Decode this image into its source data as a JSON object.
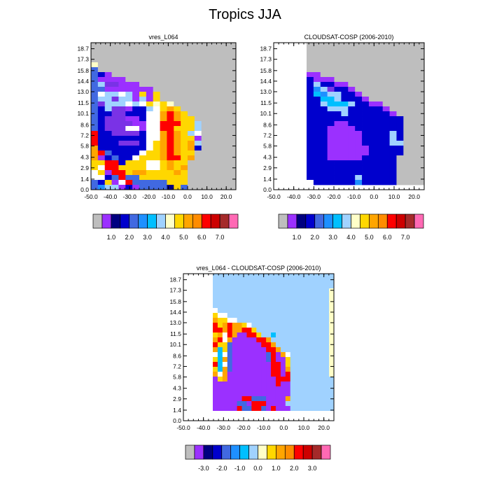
{
  "figure": {
    "title": "Tropics JJA"
  },
  "chart_data": [
    {
      "type": "heatmap",
      "title": "vres_L064",
      "xlabel": "",
      "ylabel": "",
      "x_ticks": [
        "-50.0",
        "-40.0",
        "-30.0",
        "-20.0",
        "-10.0",
        "0.0",
        "10.0",
        "20.0"
      ],
      "y_ticks": [
        "0.0",
        "1.4",
        "2.9",
        "4.3",
        "5.8",
        "7.2",
        "8.6",
        "10.1",
        "11.5",
        "13.0",
        "14.4",
        "15.8",
        "17.3",
        "18.7"
      ],
      "xlim": [
        -50,
        25
      ],
      "ylim": [
        0,
        19.5
      ],
      "colorbar_labels": [
        "1.0",
        "2.0",
        "3.0",
        "4.0",
        "5.0",
        "6.0",
        "7.0"
      ],
      "rows_top_to_bottom": [
        "GGGGGGGGGGGGGGGGGGGGG",
        "GGGGGGGGGGGGGGGGGGGGG",
        "GGGGGGGGGGGGGGGGGGGGG",
        "GGGGGGGGGGGGGGGGGGGGG",
        "wGGGGGGGGGGGGGGGGGGGG",
        "MGGGGGGGGGGGGGGGGGGGG",
        "MBPGGGGGGGGGGGGGGGGGG",
        "MPPPPGGGGGGGGGGGGGGGG",
        "MLVVPPPGGGGGGGGGGGGGG",
        "MMPPPPPPPGGGGGGGGGGGG",
        "MWLLWLPYPYGGGGGGGGGGG",
        "MLLVLLPLPYGGGGGGGGGGG",
        "MVLLLWLWYyYyGGGGGGGGG",
        "MBLVVPBBLWYOYGGGGGGGG",
        "MBBVVBBBWWOROYGGGGGGG",
        "MBVVVPPBWWOROYYGGGGGG",
        "MBVVVVPPWWRRRYYLGGGGG",
        "MBVVVWWPWWRRYYYLGGGGG",
        "RBBVVVVBWWOROYLWGGGGG",
        "RBBBBBBBWWOROYYPGGGGG",
        "RBBBVVVBWYOROYOLGGGGG",
        "OBBBBBBBWYOROYOBGGGGG",
        "ORMBBBBWYYOROYYGGGGGG",
        "OPBMBBWYYYORRYOGGGGGG",
        "YYRRBYYYWWYOYYGGGGGGG",
        "YWRRYYYYWWYOYOGGGGGGG",
        "WYPRRYOOYYYYOYGGGGGGG",
        "WWBMRMMYYYYYYYGGGGGGG",
        "MBYPWRMMMMMYYYGGGGGGG",
        "MSLLPBPMMMMDYMGGGGGGG"
      ]
    },
    {
      "type": "heatmap",
      "title": "CLOUDSAT-COSP (2006-2010)",
      "xlabel": "",
      "ylabel": "",
      "x_ticks": [
        "-50.0",
        "-40.0",
        "-30.0",
        "-20.0",
        "-10.0",
        "0.0",
        "10.0",
        "20.0"
      ],
      "y_ticks": [
        "0.0",
        "1.4",
        "2.9",
        "4.3",
        "5.8",
        "7.2",
        "8.6",
        "10.1",
        "11.5",
        "13.0",
        "14.4",
        "15.8",
        "17.3",
        "18.7"
      ],
      "xlim": [
        -50,
        25
      ],
      "ylim": [
        0,
        19.5
      ],
      "colorbar_labels": [
        "1.0",
        "2.0",
        "3.0",
        "4.0",
        "5.0",
        "6.0",
        "7.0"
      ],
      "rows_top_to_bottom": [
        "GGGGGGGGGGGGGGGGG",
        "GGGGGGGGGGGGGGGGG",
        "GGGGGGGGGGGGGGGGG",
        "GGGGGGGGGGGGGGGGG",
        "GGGGGGGGGGGGGGGGG",
        "GGGGGGGGGGGGGGGGG",
        "PPGGGGGGGGGGGGGGG",
        "BPPPGGGGGGGGGGGGG",
        "BLBBPPGGGGGGGGGGG",
        "BSLVBBPGGGGGGGGGG",
        "BCSLLBBPGGGGGGGGG",
        "BBCCLBBBPGGGGGGGG",
        "BBLCCCLBBPPGGGGGG",
        "BBBLLLBBBBBPGGGGG",
        "BBBBBLBBBBBBPGGGG",
        "BBBBBBBBBBBBBBGGG",
        "BBBBPPBBBBBBBBGGG",
        "BBBPPPPBBBBBBBGGG",
        "BBBPPPPPBBBBLBGGG",
        "BBBPPPPPBBBBLBGGG",
        "BBBPPPPPBBBBLLGGG",
        "BBBPPPPPPBBBBBGGG",
        "BBBPPPPPPBBBBBGGG",
        "BBBPPPPPBBBBBGGGG",
        "BBBBBBBBBBBBBGGGG",
        "BBBBBBBBBBBBBGGGG",
        "BBBBBBBBBBBBBGGGG",
        "BBBBBBBLBBBBBGGGG",
        "WBBBBBBSBBBBBGGGG",
        "WWWWWWWWWWWWWWWWW"
      ]
    },
    {
      "type": "heatmap",
      "title": "vres_L064 - CLOUDSAT-COSP (2006-2010)",
      "xlabel": "",
      "ylabel": "",
      "x_ticks": [
        "-50.0",
        "-40.0",
        "-30.0",
        "-20.0",
        "-10.0",
        "0.0",
        "10.0",
        "20.0"
      ],
      "y_ticks": [
        "0.0",
        "1.4",
        "2.9",
        "4.3",
        "5.8",
        "7.2",
        "8.6",
        "10.1",
        "11.5",
        "13.0",
        "14.4",
        "15.8",
        "17.3",
        "18.7"
      ],
      "xlim": [
        -50,
        25
      ],
      "ylim": [
        0,
        19.5
      ],
      "colorbar_labels": [
        "-3.0",
        "-2.0",
        "-1.0",
        "0.0",
        "1.0",
        "2.0",
        "3.0"
      ],
      "rows_top_to_bottom": [
        "LLLLLLLLLLLLLLLLLLLLLLLLL",
        "LLLLLLLLLLLLLLLLLLLLLLLLL",
        "LLLLLLLLLLLLLLLLLLLLLLLLL",
        "LLLLLLLLLLLLLLLLLLLLLLLLy",
        "LLLLLLLLLLLLLLLLLLLLLLLLy",
        "LLLLLLLLLLLLLLLLLLLLLLLLy",
        "LLLLLLLLLLLLLLLLLLLLLLLLy",
        "WLLLLLLLLLLLLLLLLLLLLLLLy",
        "YWWLLLLLLLLLLLLLLLLLLLLLy",
        "OYYWWLLLLLLLLLLLLLLLLLLLy",
        "RYOROOYWLLLLLLLLLLLLLLLLy",
        "RROROORRYLLLLLLLLLLLLLLLy",
        "YOWROPPRRYLLCLLLLLLLLLLLy",
        "ORWOPPPPPRROLLLLLLLLLLLLy",
        "RYYMPPPPPPRROLLLLLLLLLLLy",
        "OCYMPPPPPPPRROLLLLLLLLLLy",
        "WCWMPPPPPPPMRPOWLLLLLLLLy",
        "YCOMPPPPPPPMRPPYLLLLLLLLy",
        "RCWMPPPPPPPPRRPYLLLLLLLLy",
        "YCOMPPPPPPPPRRPOLLLLLLLLy",
        "OWOPPPPPPPPPRRPRLLLLLLLLy",
        "PYOPPPPPPPPPPRRRLLLLLLLLL",
        "PPPPPPPPPPPPPRPPLLLLLLLLL",
        "PPPPPPPPPPPPPPPPLLLLLLLLL",
        "PPPPPPPPPPPPPPPPLLLLLLLLL",
        "PPPPPPRRMMMPPPPOLLLLLLLLL",
        "PPPPPMMPRRRPPPPLLLLLLLLLL",
        "PPPPPRMMRRMPRPPPLLLLLLLLL",
        "WWWWWWWWWWWWWWWWWWWWWWWWW",
        "WWWWWWWWWWWWWWWWWWWWWWWWW"
      ]
    }
  ],
  "palette": {
    "G": "#bebebe",
    "W": "#ffffff",
    "P": "#9b30ff",
    "V": "#7a32e6",
    "D": "#000080",
    "B": "#0000cd",
    "M": "#4169e1",
    "S": "#1e90ff",
    "C": "#00bfff",
    "L": "#a0d2ff",
    "w": "#ffffc8",
    "y": "#ffffc8",
    "Y": "#ffd700",
    "O": "#ffa500",
    "R": "#ff0000",
    "r": "#b22222",
    "K": "#ff69b4",
    "I": "#cd0000",
    "N": "#a52a2a",
    "F": "#ff6eb4"
  },
  "colorbars": {
    "absolute": [
      "#bebebe",
      "#9b30ff",
      "#000080",
      "#0000cd",
      "#4169e1",
      "#1e90ff",
      "#00bfff",
      "#a0d2ff",
      "#ffffc8",
      "#ffd700",
      "#ffa500",
      "#ff8c00",
      "#ff0000",
      "#cd0000",
      "#a52a2a",
      "#ff69b4"
    ],
    "difference": [
      "#bebebe",
      "#9b30ff",
      "#000080",
      "#0000cd",
      "#4169e1",
      "#1e90ff",
      "#00bfff",
      "#a0d2ff",
      "#ffffc8",
      "#ffd700",
      "#ffa500",
      "#ff8c00",
      "#ff0000",
      "#cd0000",
      "#a52a2a",
      "#ff69b4"
    ]
  }
}
